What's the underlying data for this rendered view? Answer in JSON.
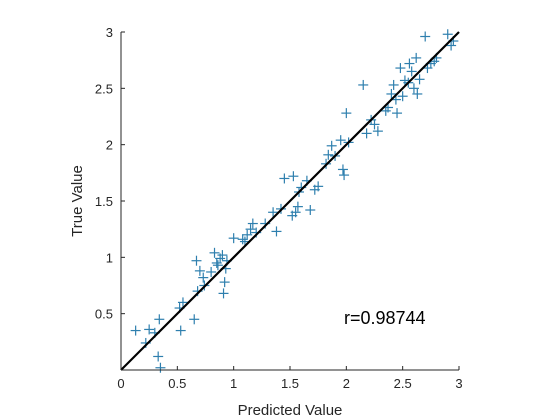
{
  "chart_data": {
    "type": "scatter",
    "title": "",
    "xlabel": "Predicted Value",
    "ylabel": "True Value",
    "xlim": [
      0,
      3
    ],
    "ylim": [
      0,
      3
    ],
    "xticks": [
      0,
      0.5,
      1,
      1.5,
      2,
      2.5,
      3
    ],
    "yticks": [
      0.5,
      1,
      1.5,
      2,
      2.5,
      3
    ],
    "xtick_labels": [
      "0",
      "0.5",
      "1",
      "1.5",
      "2",
      "2.5",
      "3"
    ],
    "ytick_labels": [
      "0.5",
      "1",
      "1.5",
      "2",
      "2.5",
      "3"
    ],
    "grid": false,
    "box": "bottom-left",
    "marker": "+",
    "colors": {
      "points": "#2e7fae",
      "fit_line": "#000000",
      "axis": "#262626"
    },
    "annotation": "r=0.98744",
    "fit_line": {
      "from": [
        0,
        0
      ],
      "to": [
        3,
        3
      ]
    },
    "series": [
      {
        "x": [
          0.13,
          0.22,
          0.25,
          0.3,
          0.33,
          0.34,
          0.35,
          0.52,
          0.53,
          0.55,
          0.65,
          0.67,
          0.68,
          0.7,
          0.73,
          0.74,
          0.8,
          0.83,
          0.85,
          0.86,
          0.88,
          0.9,
          0.91,
          0.92,
          0.93,
          0.94,
          1.0,
          1.08,
          1.1,
          1.12,
          1.15,
          1.17,
          1.2,
          1.28,
          1.35,
          1.38,
          1.42,
          1.45,
          1.52,
          1.53,
          1.55,
          1.57,
          1.58,
          1.6,
          1.65,
          1.68,
          1.72,
          1.75,
          1.82,
          1.84,
          1.87,
          1.9,
          1.95,
          1.97,
          1.98,
          2.0,
          2.02,
          2.15,
          2.18,
          2.22,
          2.25,
          2.28,
          2.35,
          2.37,
          2.4,
          2.42,
          2.44,
          2.45,
          2.48,
          2.5,
          2.52,
          2.55,
          2.56,
          2.58,
          2.6,
          2.62,
          2.63,
          2.65,
          2.7,
          2.72,
          2.75,
          2.78,
          2.8,
          2.9,
          2.93,
          2.95
        ],
        "y": [
          0.35,
          0.24,
          0.36,
          0.33,
          0.12,
          0.45,
          0.02,
          0.55,
          0.35,
          0.6,
          0.45,
          0.97,
          0.7,
          0.88,
          0.82,
          0.75,
          0.87,
          1.04,
          0.95,
          0.93,
          0.99,
          1.02,
          0.68,
          0.78,
          0.9,
          0.97,
          1.17,
          1.16,
          1.14,
          1.2,
          1.25,
          1.3,
          1.22,
          1.3,
          1.4,
          1.23,
          1.43,
          1.7,
          1.37,
          1.72,
          1.4,
          1.45,
          1.58,
          1.62,
          1.68,
          1.42,
          1.6,
          1.63,
          1.83,
          1.91,
          1.99,
          1.9,
          2.04,
          1.78,
          1.73,
          2.28,
          2.02,
          2.53,
          2.1,
          2.22,
          2.18,
          2.12,
          2.3,
          2.33,
          2.45,
          2.53,
          2.4,
          2.28,
          2.68,
          2.43,
          2.57,
          2.55,
          2.72,
          2.65,
          2.5,
          2.77,
          2.45,
          2.58,
          2.96,
          2.68,
          2.72,
          2.74,
          2.77,
          2.98,
          2.88,
          2.92
        ]
      }
    ]
  }
}
